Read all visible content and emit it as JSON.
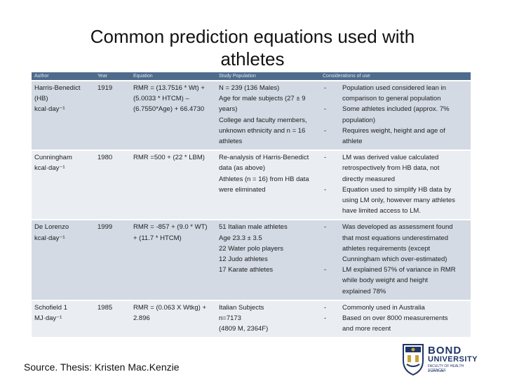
{
  "slide": {
    "title": "Common prediction equations used with athletes",
    "source": "Source. Thesis: Kristen Mac.Kenzie"
  },
  "table": {
    "headers": [
      "Author",
      "Year",
      "Equation",
      "Study Population",
      "Considerations of use"
    ],
    "rows": [
      {
        "author": [
          "Harris-Benedict",
          "(HB)",
          "kcal·day⁻¹"
        ],
        "year": "1919",
        "equation": [
          "RMR = (13.7516 * Wt) +",
          "(5.0033 * HTCM) –",
          "(6.7550*Age) + 66.4730"
        ],
        "population": [
          "N = 239 (136 Males)",
          "Age for male subjects (27 ± 9",
          "years)",
          "College and faculty members,",
          "unknown ethnicity and n = 16",
          "athletes"
        ],
        "considerations": [
          {
            "dash": "-",
            "text": [
              "Population used considered lean in",
              "comparison to general population"
            ]
          },
          {
            "dash": "-",
            "text": [
              "Some athletes included (approx. 7%",
              "population)"
            ]
          },
          {
            "dash": "-",
            "text": [
              "Requires weight, height and age of",
              "athlete"
            ]
          }
        ]
      },
      {
        "author": [
          "Cunningham",
          "kcal·day⁻¹"
        ],
        "year": "1980",
        "equation": [
          "RMR =500 + (22 * LBM)"
        ],
        "population": [
          "Re-analysis of Harris-Benedict",
          "data (as above)",
          "Athletes (n = 16) from HB data",
          "were eliminated"
        ],
        "considerations": [
          {
            "dash": "-",
            "text": [
              "LM was derived value calculated",
              "retrospectively from HB data, not",
              "directly measured"
            ]
          },
          {
            "dash": "-",
            "text": [
              "Equation used to simplify HB data by",
              "using LM only, however many athletes",
              "have limited access to LM."
            ]
          }
        ]
      },
      {
        "author": [
          "De Lorenzo",
          "kcal·day⁻¹"
        ],
        "year": "1999",
        "equation": [
          "RMR = -857 + (9.0 * WT)",
          "+ (11.7 * HTCM)"
        ],
        "population": [
          "51 Italian male athletes",
          "Age 23.3 ± 3.5",
          "22 Water polo players",
          "12 Judo athletes",
          "17 Karate athletes"
        ],
        "considerations": [
          {
            "dash": "-",
            "text": [
              "Was developed as assessment found",
              "that most equations underestimated",
              "athletes requirements (except",
              "Cunningham which over-estimated)"
            ]
          },
          {
            "dash": "-",
            "text": [
              "LM explained 57% of variance in RMR",
              "while body weight and height",
              "explained 78%"
            ]
          }
        ]
      },
      {
        "author": [
          "Schofield 1",
          "MJ·day⁻¹"
        ],
        "year": "1985",
        "equation": [
          "RMR = (0.063 X Wtkg) +",
          "2.896"
        ],
        "population": [
          "Italian Subjects",
          "n=7173",
          "(4809 M, 2364F)"
        ],
        "considerations": [
          {
            "dash": "-",
            "text": [
              "Commonly used in Australia"
            ]
          },
          {
            "dash": "-",
            "text": [
              "Based on over 8000 measurements",
              "and more recent"
            ]
          }
        ]
      }
    ]
  },
  "logo": {
    "line1": "BOND",
    "line2": "UNIVERSITY",
    "line3": "FACULTY OF HEALTH SCIENCES",
    "line4": "& MEDICINE",
    "icon": "university-crest-icon"
  }
}
